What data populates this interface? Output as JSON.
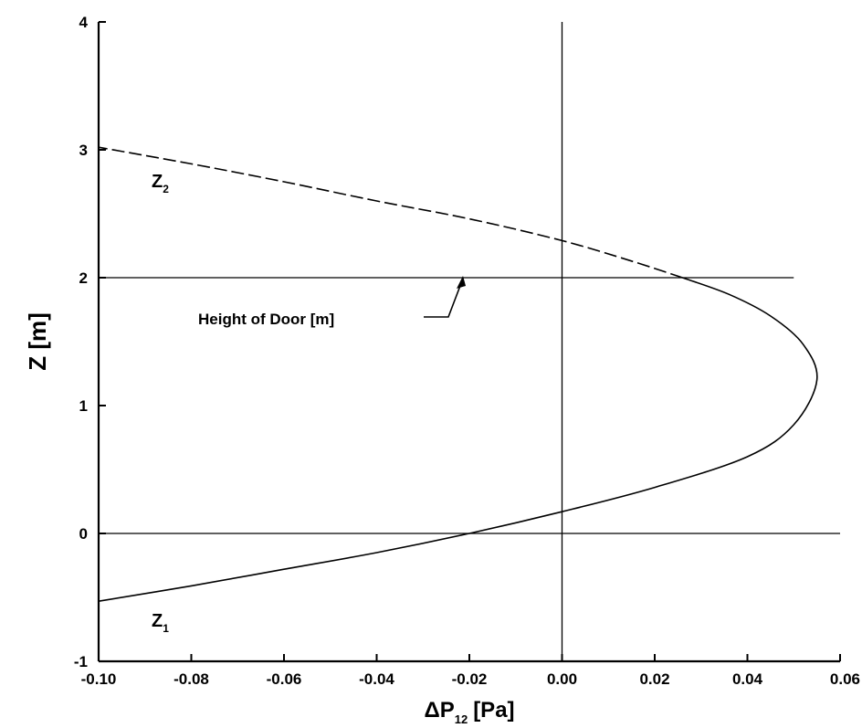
{
  "chart_data": {
    "type": "line",
    "xlabel_main": "ΔP",
    "xlabel_sub": "12",
    "xlabel_unit": "[Pa]",
    "ylabel": "Z [m]",
    "xlim": [
      -0.1,
      0.06
    ],
    "ylim": [
      -1,
      4
    ],
    "xticks": [
      "-0.10",
      "-0.08",
      "-0.06",
      "-0.04",
      "-0.02",
      "0.00",
      "0.02",
      "0.04",
      "0.06"
    ],
    "xtick_values": [
      -0.1,
      -0.08,
      -0.06,
      -0.04,
      -0.02,
      0.0,
      0.02,
      0.04,
      0.06
    ],
    "yticks": [
      "-1",
      "0",
      "1",
      "2",
      "3",
      "4"
    ],
    "ytick_values": [
      -1,
      0,
      1,
      2,
      3,
      4
    ],
    "reference_lines": {
      "vertical_x": 0.0,
      "horizontal_y": [
        0.0,
        2.0
      ]
    },
    "series": [
      {
        "style": "solid",
        "x": [
          -0.1,
          -0.08,
          -0.06,
          -0.04,
          -0.02,
          0.0,
          0.02,
          0.04,
          0.05,
          0.055,
          0.052,
          0.045,
          0.036,
          0.026
        ],
        "y": [
          -0.53,
          -0.41,
          -0.28,
          -0.15,
          0.0,
          0.17,
          0.36,
          0.6,
          0.85,
          1.2,
          1.48,
          1.7,
          1.87,
          2.0
        ]
      },
      {
        "style": "dashed",
        "x": [
          0.026,
          0.015,
          0.0,
          -0.02,
          -0.04,
          -0.06,
          -0.08,
          -0.1
        ],
        "y": [
          2.0,
          2.13,
          2.29,
          2.46,
          2.6,
          2.75,
          2.89,
          3.02
        ]
      }
    ],
    "annotations": {
      "z2_main": "Z",
      "z2_sub": "2",
      "z1_main": "Z",
      "z1_sub": "1",
      "door_label": "Height of Door [m]"
    }
  }
}
